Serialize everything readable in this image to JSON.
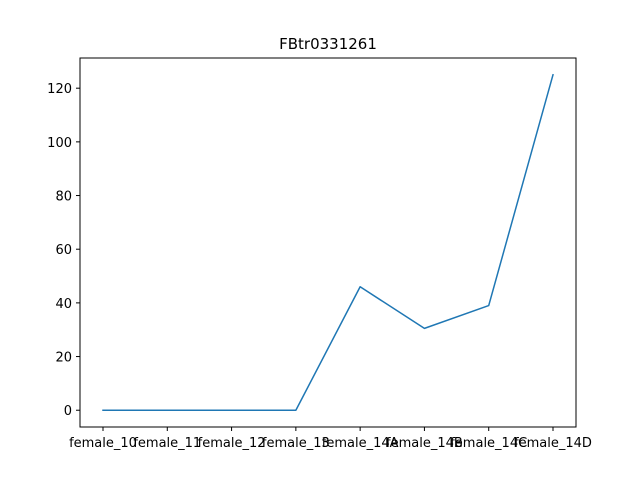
{
  "chart_data": {
    "type": "line",
    "title": "FBtr0331261",
    "xlabel": "",
    "ylabel": "",
    "categories": [
      "female_10",
      "female_11",
      "female_12",
      "female_13",
      "female_14A",
      "female_14B",
      "female_14C",
      "female_14D"
    ],
    "series": [
      {
        "values": [
          0,
          0,
          0,
          0,
          46,
          30.5,
          39,
          125
        ],
        "color": "#1f77b4"
      }
    ],
    "yticks": [
      0,
      20,
      40,
      60,
      80,
      100,
      120
    ],
    "ylim": [
      -6.25,
      131.25
    ],
    "grid": false,
    "legend": "none"
  }
}
